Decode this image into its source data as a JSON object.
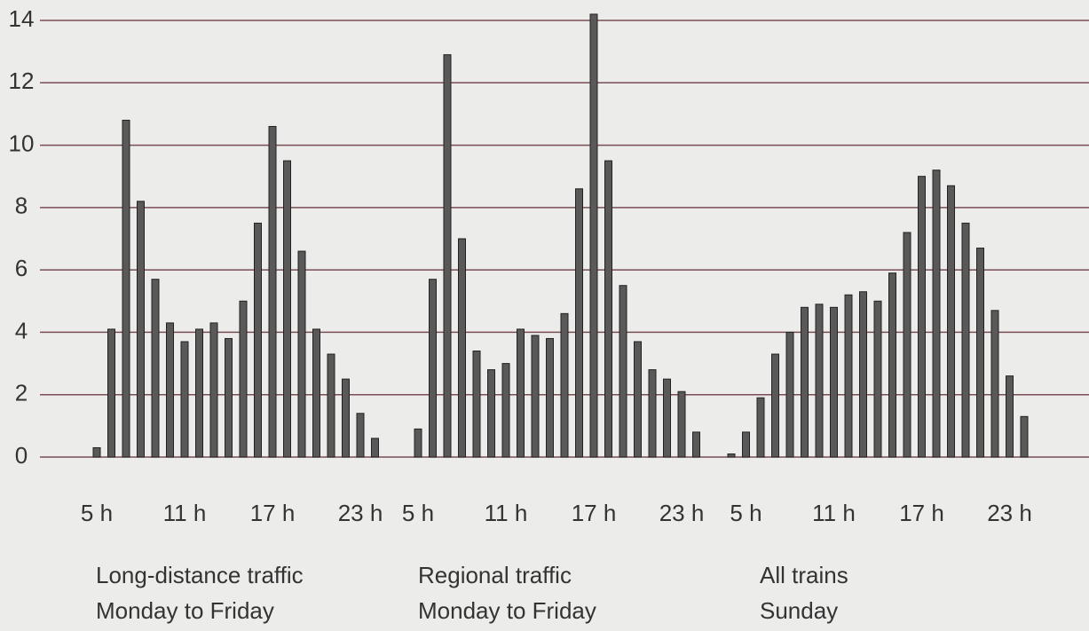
{
  "chart_data": {
    "type": "bar",
    "color": "#5a5858",
    "grid": true,
    "ylim": [
      0,
      14
    ],
    "yticks": [
      0,
      2,
      4,
      6,
      8,
      10,
      12,
      14
    ],
    "panels": [
      {
        "label": [
          "Long-distance traffic",
          "Monday to Friday"
        ],
        "categories": [
          "5 h",
          null,
          null,
          null,
          null,
          null,
          "11 h",
          null,
          null,
          null,
          null,
          null,
          "17 h",
          null,
          null,
          null,
          null,
          null,
          "23 h",
          null
        ],
        "values": [
          0.3,
          4.1,
          10.8,
          8.2,
          5.7,
          4.3,
          3.7,
          4.1,
          4.3,
          3.8,
          5.0,
          7.5,
          10.6,
          9.5,
          6.6,
          4.1,
          3.3,
          2.5,
          1.4,
          0.6
        ]
      },
      {
        "label": [
          "Regional traffic",
          "Monday to Friday"
        ],
        "categories": [
          "5 h",
          null,
          null,
          null,
          null,
          null,
          "11 h",
          null,
          null,
          null,
          null,
          null,
          "17 h",
          null,
          null,
          null,
          null,
          null,
          "23 h",
          null
        ],
        "values": [
          0.9,
          5.7,
          12.9,
          7.0,
          3.4,
          2.8,
          3.0,
          4.1,
          3.9,
          3.8,
          4.6,
          8.6,
          14.2,
          9.5,
          5.5,
          3.7,
          2.8,
          2.5,
          2.1,
          0.8
        ]
      },
      {
        "label": [
          "All trains",
          "Sunday"
        ],
        "categories": [
          null,
          "5 h",
          null,
          null,
          null,
          null,
          null,
          "11 h",
          null,
          null,
          null,
          null,
          null,
          "17 h",
          null,
          null,
          null,
          null,
          null,
          "23 h",
          null
        ],
        "values": [
          0.1,
          0.8,
          1.9,
          3.3,
          4.0,
          4.8,
          4.9,
          4.8,
          5.2,
          5.3,
          5.0,
          5.9,
          7.2,
          9.0,
          9.2,
          8.7,
          7.5,
          6.7,
          4.7,
          2.6,
          1.3
        ]
      }
    ]
  }
}
